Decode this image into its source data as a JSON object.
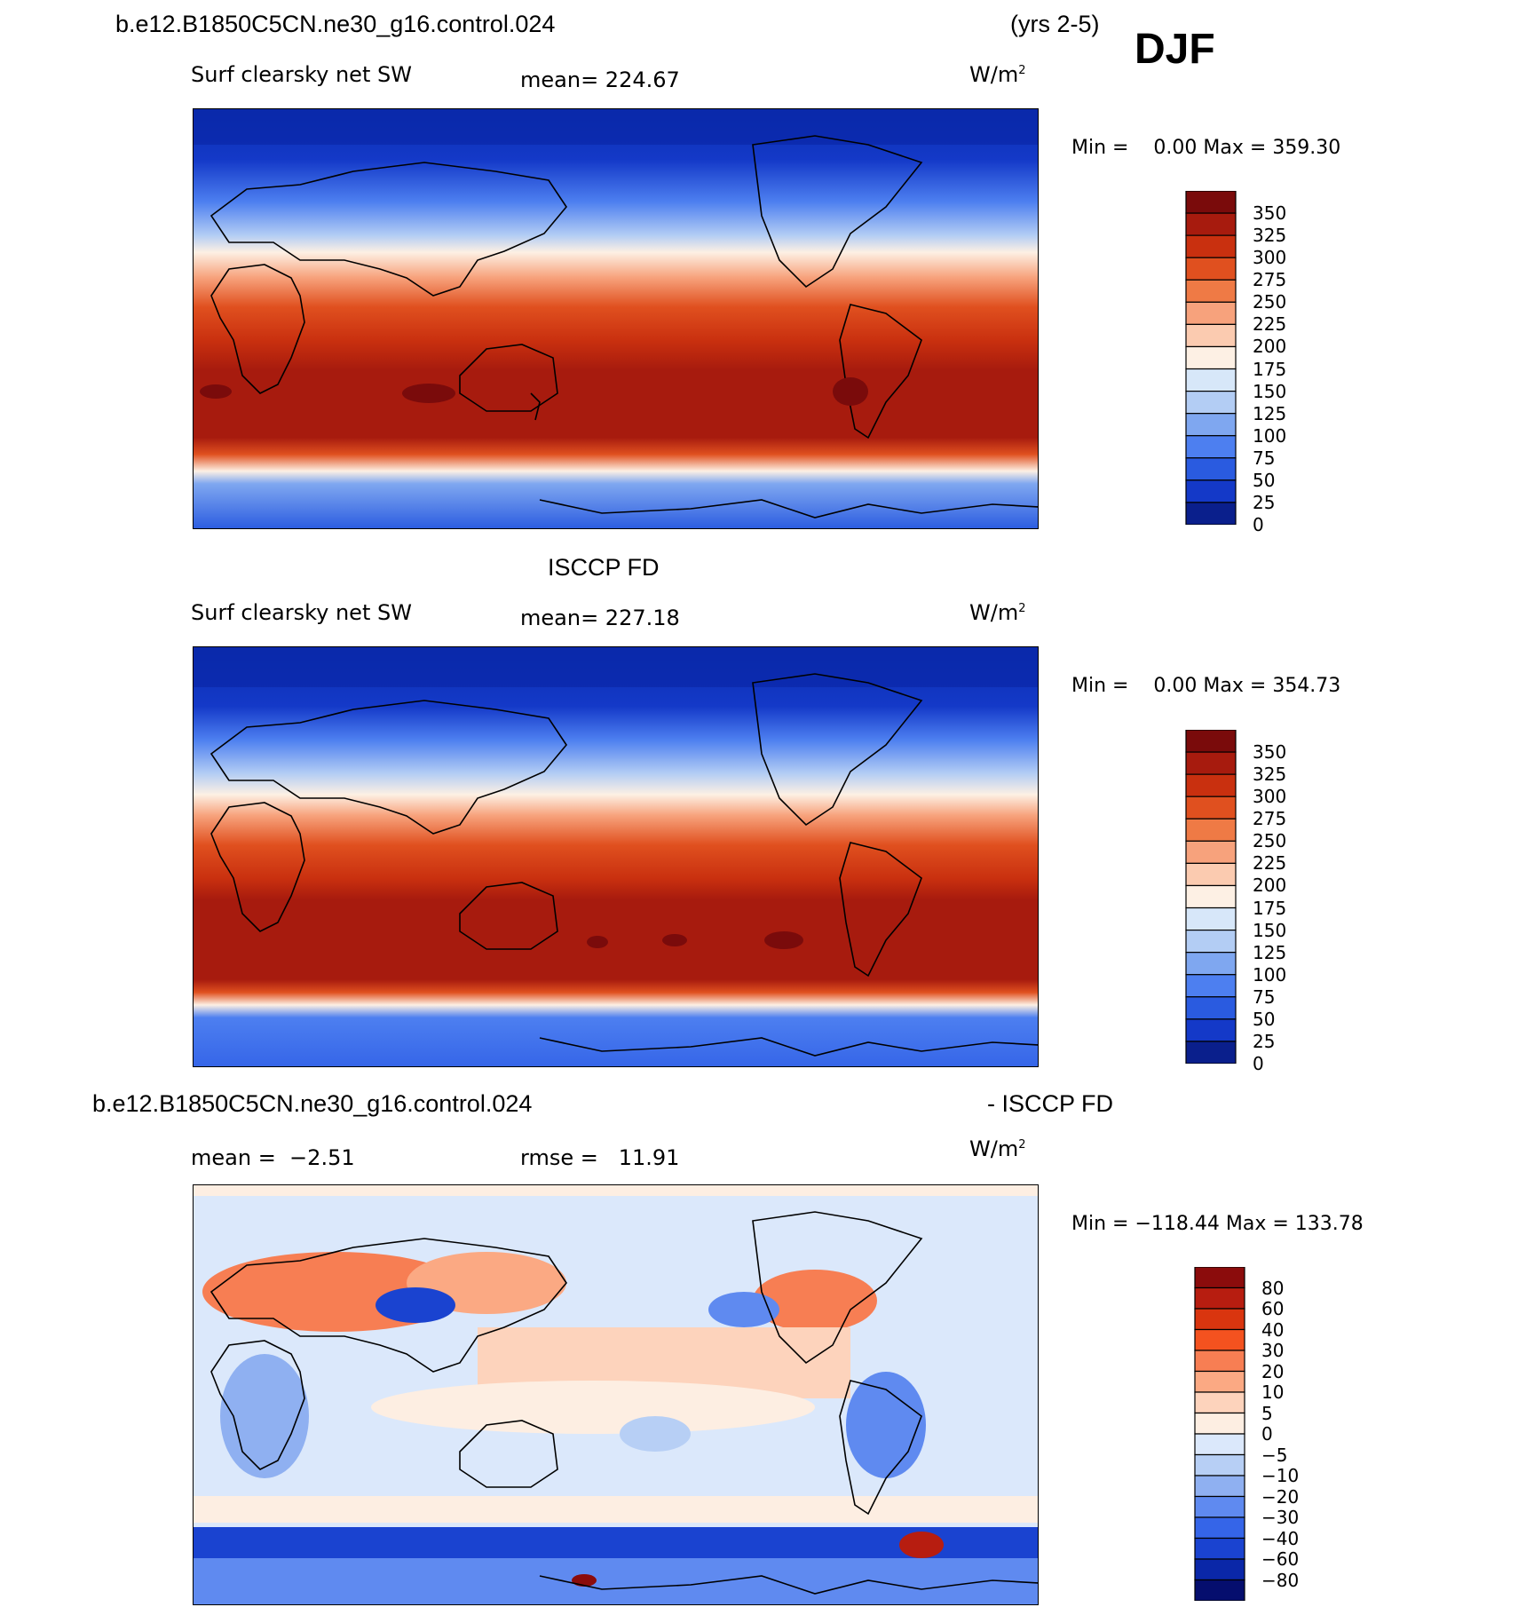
{
  "header": {
    "case_name": "b.e12.B1850C5CN.ne30_g16.control.024",
    "years": "(yrs 2-5)",
    "season": "DJF"
  },
  "panels": [
    {
      "id": "model",
      "variable": "Surf clearsky net SW",
      "mean_label": "mean= 224.67",
      "units": "W/m",
      "units_sup": "2",
      "minmax": "Min =    0.00 Max = 359.30",
      "colorbar_labels": [
        "350",
        "325",
        "300",
        "275",
        "250",
        "225",
        "200",
        "175",
        "150",
        "125",
        "100",
        "75",
        "50",
        "25",
        "0"
      ]
    },
    {
      "id": "obs",
      "title": "ISCCP FD",
      "variable": "Surf clearsky net SW",
      "mean_label": "mean= 227.18",
      "units": "W/m",
      "units_sup": "2",
      "minmax": "Min =    0.00 Max = 354.73",
      "colorbar_labels": [
        "350",
        "325",
        "300",
        "275",
        "250",
        "225",
        "200",
        "175",
        "150",
        "125",
        "100",
        "75",
        "50",
        "25",
        "0"
      ]
    },
    {
      "id": "diff",
      "title_left": "b.e12.B1850C5CN.ne30_g16.control.024",
      "title_right": "- ISCCP FD",
      "mean_label": "mean =  −2.51",
      "rmse_label": "rmse =   11.91",
      "units": "W/m",
      "units_sup": "2",
      "minmax": "Min = −118.44 Max = 133.78",
      "colorbar_labels": [
        "80",
        "60",
        "40",
        "30",
        "20",
        "10",
        "5",
        "0",
        "−5",
        "−10",
        "−20",
        "−30",
        "−40",
        "−60",
        "−80"
      ]
    }
  ],
  "colors": {
    "abs_scale": [
      "#7a0b0b",
      "#a71b0e",
      "#c9300f",
      "#e0501f",
      "#ef7a45",
      "#f7a27c",
      "#fbcbb0",
      "#fdf0e4",
      "#d7e7f9",
      "#b3cdf4",
      "#7fa7f0",
      "#4d7ff0",
      "#2a5be0",
      "#1439c8",
      "#0a1f8c"
    ],
    "diff_scale": [
      "#8b0c0c",
      "#b71d10",
      "#d9350f",
      "#f4521f",
      "#f77e53",
      "#fba983",
      "#fdd3bc",
      "#fdeee2",
      "#dbe8fb",
      "#b7cff5",
      "#8fb0f1",
      "#5f8af0",
      "#3565e8",
      "#1a43d0",
      "#0a27a8",
      "#050e6e"
    ]
  }
}
